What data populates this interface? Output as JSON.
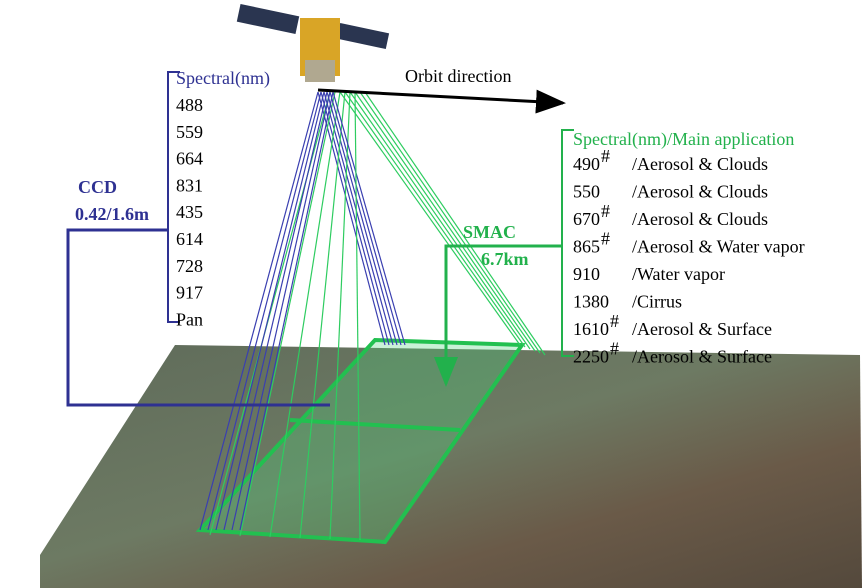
{
  "orbit_label": "Orbit direction",
  "ccd": {
    "name": "CCD",
    "resolution": "0.42/1.6m",
    "header": "Spectral(nm)",
    "bands": [
      "488",
      "559",
      "664",
      "831",
      "435",
      "614",
      "728",
      "917",
      "Pan"
    ]
  },
  "smac": {
    "name": "SMAC",
    "resolution": "6.7km",
    "header": "Spectral(nm)/Main application",
    "rows": [
      {
        "band": "490",
        "mark": "#",
        "application": "/Aerosol & Clouds"
      },
      {
        "band": "550",
        "application": "/Aerosol & Clouds"
      },
      {
        "band": "670",
        "mark": "#",
        "application": "/Aerosol & Clouds"
      },
      {
        "band": "865",
        "mark": "#",
        "application": "/Aerosol & Water vapor"
      },
      {
        "band": "910",
        "application": "/Water vapor"
      },
      {
        "band": "1380",
        "application": "/Cirrus"
      },
      {
        "band": "1610",
        "mark": "#",
        "application": "/Aerosol & Surface"
      },
      {
        "band": "2250",
        "mark": "#",
        "application": "/Aerosol & Surface"
      }
    ]
  }
}
